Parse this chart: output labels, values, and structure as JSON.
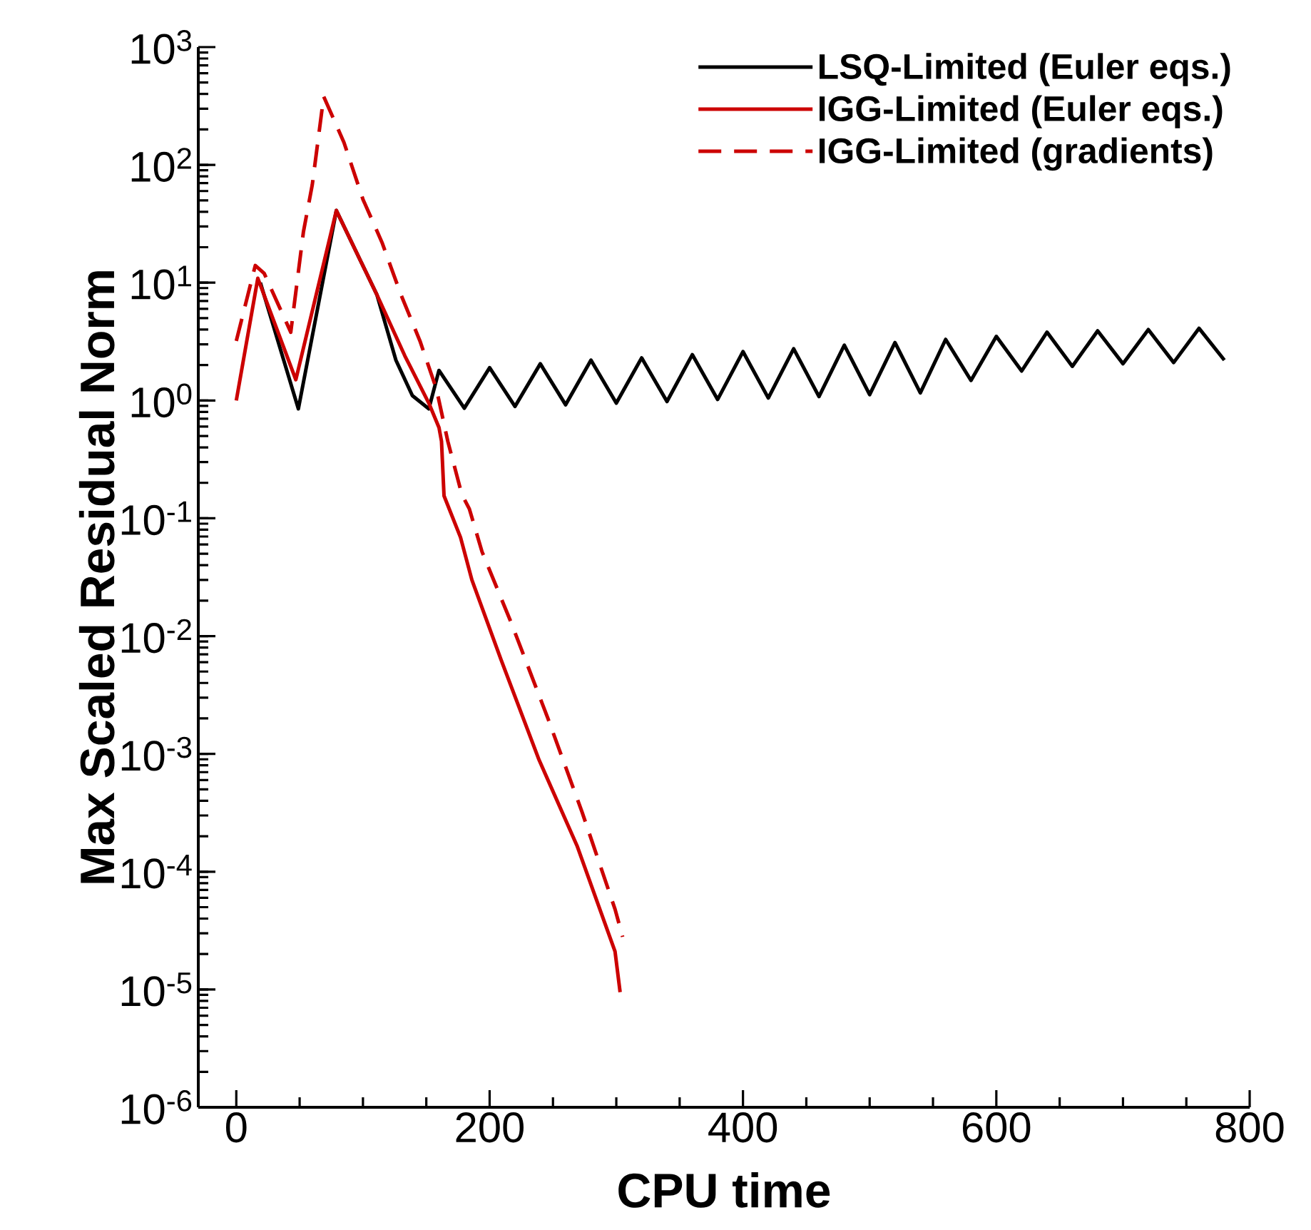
{
  "chart_data": {
    "type": "line",
    "xlabel": "CPU time",
    "ylabel": "Max Scaled Residual Norm",
    "log": "y",
    "legend": "top right",
    "marker": "none",
    "xlim": [
      -30,
      800
    ],
    "xticks": [
      0,
      200,
      400,
      600,
      800
    ],
    "ylim": [
      1e-06,
      1000
    ],
    "yticks": [
      {
        "value": 1e-06,
        "label": "10$^{-6}$"
      },
      {
        "value": 1e-05,
        "label": "10$^{-5}$"
      },
      {
        "value": 0.0001,
        "label": "10$^{-4}$"
      },
      {
        "value": 0.001,
        "label": "10$^{-3}$"
      },
      {
        "value": 0.01,
        "label": "10$^{-2}$"
      },
      {
        "value": 0.1,
        "label": "10$^{-1}$"
      },
      {
        "value": 1,
        "label": "10$^{0}$"
      },
      {
        "value": 10,
        "label": "10$^{1}$"
      },
      {
        "value": 100,
        "label": "10$^{2}$"
      },
      {
        "value": 1000,
        "label": "10$^{3}$"
      }
    ],
    "series": [
      {
        "name": "LSQ-Limited (Euler eqs.)",
        "color": "#000000",
        "line_style": "solid",
        "x": [
          19,
          49,
          79,
          111,
          126,
          139,
          152,
          160,
          180,
          200,
          220,
          240,
          260,
          280,
          300,
          320,
          340,
          360,
          380,
          400,
          420,
          440,
          460,
          480,
          500,
          520,
          540,
          560,
          580,
          600,
          620,
          640,
          660,
          680,
          700,
          720,
          740,
          760,
          780
        ],
        "values": [
          10,
          0.85,
          41,
          7.9,
          2.2,
          1.1,
          0.85,
          1.8,
          0.86,
          1.9,
          0.89,
          2.05,
          0.92,
          2.2,
          0.95,
          2.3,
          0.98,
          2.45,
          1.02,
          2.6,
          1.05,
          2.75,
          1.08,
          2.95,
          1.12,
          3.1,
          1.16,
          3.3,
          1.48,
          3.5,
          1.78,
          3.8,
          1.95,
          3.9,
          2.05,
          4.0,
          2.1,
          4.1,
          2.2
        ]
      },
      {
        "name": "IGG-Limited (Euler eqs.)",
        "color": "#cc0000",
        "line_style": "solid",
        "x": [
          0,
          17,
          47,
          79,
          111,
          133,
          152,
          160,
          162,
          164,
          177,
          186,
          209,
          239,
          269,
          299,
          303
        ],
        "values": [
          1.0,
          10.9,
          1.5,
          41,
          7.9,
          2.4,
          0.95,
          0.59,
          0.45,
          0.155,
          0.069,
          0.03,
          0.0063,
          0.00089,
          0.000166,
          2.1e-05,
          9.5e-06
        ]
      },
      {
        "name": "IGG-Limited (gradients)",
        "color": "#cc0000",
        "line_style": "dashed",
        "x": [
          0,
          15,
          22,
          43,
          53,
          60,
          69,
          85,
          100,
          115,
          130,
          145,
          158,
          167,
          178,
          184,
          194,
          217,
          246,
          273,
          299,
          305
        ],
        "values": [
          3.2,
          14,
          12,
          3.8,
          27,
          68,
          380,
          155,
          51,
          22,
          7.9,
          3.2,
          1.25,
          0.45,
          0.16,
          0.12,
          0.052,
          0.013,
          0.002,
          0.00032,
          4.8e-05,
          2.8e-05
        ]
      }
    ]
  }
}
